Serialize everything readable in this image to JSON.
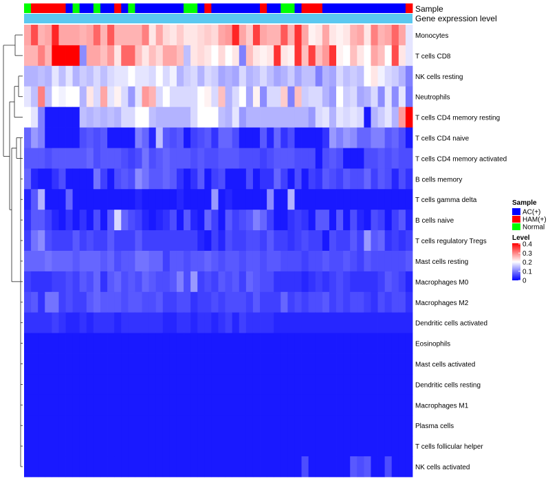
{
  "chart_data": {
    "type": "heatmap",
    "title": "",
    "annotation_tracks": [
      "Sample",
      "Gene expression level"
    ],
    "sample_groups": [
      "Normal",
      "HAM(+)",
      "HAM(+)",
      "HAM(+)",
      "HAM(+)",
      "HAM(+)",
      "AC(+)",
      "Normal",
      "AC(+)",
      "AC(+)",
      "Normal",
      "AC(+)",
      "AC(+)",
      "HAM(+)",
      "AC(+)",
      "Normal",
      "AC(+)",
      "AC(+)",
      "AC(+)",
      "AC(+)",
      "AC(+)",
      "AC(+)",
      "AC(+)",
      "Normal",
      "Normal",
      "AC(+)",
      "HAM(+)",
      "AC(+)",
      "AC(+)",
      "AC(+)",
      "AC(+)",
      "AC(+)",
      "AC(+)",
      "AC(+)",
      "HAM(+)",
      "AC(+)",
      "AC(+)",
      "Normal",
      "Normal",
      "AC(+)",
      "HAM(+)",
      "HAM(+)",
      "HAM(+)",
      "AC(+)",
      "AC(+)",
      "AC(+)",
      "AC(+)",
      "AC(+)",
      "AC(+)",
      "AC(+)",
      "AC(+)",
      "AC(+)",
      "AC(+)",
      "AC(+)",
      "AC(+)",
      "HAM(+)"
    ],
    "rows": [
      "Monocytes",
      "T cells CD8",
      "NK cells resting",
      "Neutrophils",
      "T cells CD4 memory resting",
      "T cells CD4 naive",
      "T cells CD4 memory activated",
      "B cells memory",
      "T cells gamma delta",
      "B cells naive",
      "T cells regulatory  Tregs",
      "Mast cells resting",
      "Macrophages M0",
      "Macrophages M2",
      "Dendritic cells activated",
      "Eosinophils",
      "Mast cells activated",
      "Dendritic cells resting",
      "Macrophages M1",
      "Plasma cells",
      "T cells follicular helper",
      "NK cells activated"
    ],
    "values": [
      [
        0.27,
        0.34,
        0.26,
        0.27,
        0.37,
        0.27,
        0.27,
        0.27,
        0.26,
        0.27,
        0.32,
        0.26,
        0.33,
        0.26,
        0.26,
        0.26,
        0.26,
        0.3,
        0.22,
        0.27,
        0.23,
        0.22,
        0.24,
        0.22,
        0.22,
        0.23,
        0.24,
        0.23,
        0.27,
        0.28,
        0.37,
        0.27,
        0.24,
        0.35,
        0.27,
        0.26,
        0.26,
        0.33,
        0.26,
        0.36,
        0.27,
        0.21,
        0.22,
        0.27,
        0.22,
        0.21,
        0.22,
        0.26,
        0.27,
        0.22,
        0.3,
        0.26,
        0.27,
        0.32,
        0.27,
        0.18
      ],
      [
        0.26,
        0.26,
        0.3,
        0.26,
        0.4,
        0.4,
        0.4,
        0.4,
        0.11,
        0.27,
        0.27,
        0.25,
        0.28,
        0.22,
        0.32,
        0.32,
        0.25,
        0.22,
        0.25,
        0.23,
        0.27,
        0.27,
        0.25,
        0.15,
        0.22,
        0.23,
        0.22,
        0.2,
        0.23,
        0.2,
        0.22,
        0.1,
        0.25,
        0.22,
        0.21,
        0.22,
        0.36,
        0.22,
        0.21,
        0.36,
        0.25,
        0.35,
        0.25,
        0.28,
        0.36,
        0.21,
        0.2,
        0.25,
        0.22,
        0.2,
        0.27,
        0.25,
        0.2,
        0.34,
        0.22,
        0.18
      ],
      [
        0.14,
        0.14,
        0.15,
        0.14,
        0.18,
        0.15,
        0.18,
        0.14,
        0.16,
        0.15,
        0.17,
        0.15,
        0.17,
        0.18,
        0.18,
        0.2,
        0.18,
        0.18,
        0.17,
        0.2,
        0.17,
        0.19,
        0.14,
        0.16,
        0.17,
        0.14,
        0.17,
        0.16,
        0.13,
        0.14,
        0.13,
        0.17,
        0.14,
        0.15,
        0.17,
        0.15,
        0.13,
        0.14,
        0.16,
        0.13,
        0.15,
        0.15,
        0.1,
        0.14,
        0.13,
        0.17,
        0.15,
        0.16,
        0.15,
        0.2,
        0.22,
        0.19,
        0.17,
        0.16,
        0.14,
        0.1
      ],
      [
        0.18,
        0.15,
        0.3,
        0.15,
        0.2,
        0.19,
        0.2,
        0.2,
        0.14,
        0.22,
        0.17,
        0.27,
        0.18,
        0.21,
        0.17,
        0.12,
        0.18,
        0.28,
        0.26,
        0.17,
        0.2,
        0.17,
        0.17,
        0.17,
        0.17,
        0.2,
        0.21,
        0.17,
        0.25,
        0.14,
        0.17,
        0.2,
        0.13,
        0.21,
        0.11,
        0.17,
        0.17,
        0.24,
        0.1,
        0.25,
        0.16,
        0.17,
        0.17,
        0.14,
        0.12,
        0.2,
        0.16,
        0.17,
        0.13,
        0.14,
        0.17,
        0.11,
        0.18,
        0.11,
        0.18,
        0.09
      ],
      [
        0.2,
        0.18,
        0.1,
        0.02,
        0.02,
        0.02,
        0.02,
        0.02,
        0.15,
        0.14,
        0.15,
        0.14,
        0.15,
        0.14,
        0.17,
        0.17,
        0.2,
        0.2,
        0.15,
        0.14,
        0.14,
        0.14,
        0.14,
        0.14,
        0.17,
        0.2,
        0.2,
        0.2,
        0.15,
        0.14,
        0.18,
        0.12,
        0.14,
        0.14,
        0.14,
        0.14,
        0.14,
        0.14,
        0.14,
        0.14,
        0.14,
        0.12,
        0.17,
        0.18,
        0.14,
        0.18,
        0.17,
        0.18,
        0.17,
        0.02,
        0.14,
        0.16,
        0.18,
        0.14,
        0.28,
        0.4
      ],
      [
        0.08,
        0.12,
        0.1,
        0.02,
        0.02,
        0.02,
        0.02,
        0.02,
        0.06,
        0.07,
        0.06,
        0.07,
        0.02,
        0.02,
        0.02,
        0.02,
        0.1,
        0.08,
        0.03,
        0.15,
        0.07,
        0.06,
        0.07,
        0.02,
        0.05,
        0.06,
        0.07,
        0.04,
        0.08,
        0.08,
        0.06,
        0.02,
        0.02,
        0.02,
        0.07,
        0.03,
        0.08,
        0.04,
        0.06,
        0.02,
        0.02,
        0.02,
        0.02,
        0.04,
        0.12,
        0.1,
        0.12,
        0.11,
        0.08,
        0.08,
        0.1,
        0.1,
        0.07,
        0.08,
        0.06,
        0.02
      ],
      [
        0.07,
        0.07,
        0.07,
        0.06,
        0.07,
        0.07,
        0.07,
        0.07,
        0.07,
        0.08,
        0.06,
        0.07,
        0.07,
        0.07,
        0.06,
        0.05,
        0.06,
        0.09,
        0.06,
        0.07,
        0.08,
        0.07,
        0.07,
        0.07,
        0.06,
        0.07,
        0.06,
        0.06,
        0.07,
        0.07,
        0.07,
        0.06,
        0.06,
        0.06,
        0.05,
        0.06,
        0.07,
        0.07,
        0.07,
        0.06,
        0.06,
        0.06,
        0.02,
        0.06,
        0.07,
        0.06,
        0.02,
        0.02,
        0.02,
        0.06,
        0.06,
        0.07,
        0.06,
        0.07,
        0.06,
        0.06
      ],
      [
        0.08,
        0.03,
        0.02,
        0.02,
        0.04,
        0.06,
        0.02,
        0.02,
        0.02,
        0.02,
        0.09,
        0.05,
        0.02,
        0.06,
        0.07,
        0.06,
        0.11,
        0.09,
        0.07,
        0.07,
        0.08,
        0.07,
        0.04,
        0.02,
        0.04,
        0.07,
        0.02,
        0.05,
        0.06,
        0.02,
        0.02,
        0.02,
        0.06,
        0.02,
        0.04,
        0.04,
        0.08,
        0.05,
        0.02,
        0.06,
        0.02,
        0.05,
        0.04,
        0.07,
        0.06,
        0.05,
        0.07,
        0.06,
        0.06,
        0.08,
        0.05,
        0.07,
        0.06,
        0.03,
        0.06,
        0.04
      ],
      [
        0.03,
        0.07,
        0.14,
        0.02,
        0.02,
        0.02,
        0.08,
        0.02,
        0.02,
        0.02,
        0.02,
        0.02,
        0.02,
        0.02,
        0.02,
        0.02,
        0.03,
        0.02,
        0.02,
        0.02,
        0.02,
        0.02,
        0.03,
        0.02,
        0.02,
        0.02,
        0.02,
        0.12,
        0.02,
        0.03,
        0.02,
        0.02,
        0.02,
        0.02,
        0.02,
        0.11,
        0.02,
        0.02,
        0.14,
        0.02,
        0.02,
        0.02,
        0.02,
        0.02,
        0.02,
        0.02,
        0.02,
        0.02,
        0.02,
        0.02,
        0.02,
        0.02,
        0.02,
        0.02,
        0.02,
        0.02
      ],
      [
        0.04,
        0.07,
        0.07,
        0.05,
        0.03,
        0.02,
        0.04,
        0.02,
        0.04,
        0.02,
        0.06,
        0.02,
        0.07,
        0.17,
        0.08,
        0.06,
        0.05,
        0.03,
        0.02,
        0.03,
        0.04,
        0.06,
        0.02,
        0.07,
        0.03,
        0.02,
        0.08,
        0.05,
        0.02,
        0.07,
        0.05,
        0.06,
        0.07,
        0.1,
        0.08,
        0.05,
        0.02,
        0.02,
        0.04,
        0.05,
        0.04,
        0.02,
        0.07,
        0.07,
        0.02,
        0.07,
        0.02,
        0.06,
        0.03,
        0.02,
        0.06,
        0.05,
        0.02,
        0.05,
        0.07,
        0.03
      ],
      [
        0.05,
        0.09,
        0.11,
        0.06,
        0.05,
        0.05,
        0.05,
        0.07,
        0.05,
        0.06,
        0.05,
        0.05,
        0.07,
        0.05,
        0.05,
        0.05,
        0.07,
        0.05,
        0.05,
        0.05,
        0.05,
        0.05,
        0.05,
        0.05,
        0.05,
        0.03,
        0.02,
        0.05,
        0.03,
        0.06,
        0.05,
        0.05,
        0.06,
        0.06,
        0.05,
        0.07,
        0.05,
        0.05,
        0.04,
        0.05,
        0.06,
        0.05,
        0.05,
        0.02,
        0.06,
        0.05,
        0.05,
        0.07,
        0.05,
        0.12,
        0.07,
        0.08,
        0.04,
        0.05,
        0.04,
        0.05
      ],
      [
        0.08,
        0.08,
        0.08,
        0.09,
        0.08,
        0.08,
        0.08,
        0.07,
        0.08,
        0.08,
        0.08,
        0.07,
        0.08,
        0.06,
        0.07,
        0.07,
        0.09,
        0.09,
        0.08,
        0.08,
        0.05,
        0.07,
        0.07,
        0.06,
        0.07,
        0.07,
        0.08,
        0.07,
        0.06,
        0.07,
        0.07,
        0.06,
        0.07,
        0.07,
        0.06,
        0.07,
        0.07,
        0.06,
        0.06,
        0.06,
        0.05,
        0.06,
        0.06,
        0.07,
        0.06,
        0.06,
        0.07,
        0.06,
        0.05,
        0.07,
        0.06,
        0.06,
        0.06,
        0.06,
        0.06,
        0.07
      ],
      [
        0.05,
        0.04,
        0.04,
        0.04,
        0.05,
        0.05,
        0.06,
        0.05,
        0.07,
        0.06,
        0.08,
        0.04,
        0.07,
        0.08,
        0.06,
        0.07,
        0.06,
        0.08,
        0.07,
        0.06,
        0.06,
        0.07,
        0.1,
        0.06,
        0.12,
        0.05,
        0.06,
        0.05,
        0.07,
        0.06,
        0.07,
        0.05,
        0.08,
        0.07,
        0.06,
        0.06,
        0.04,
        0.04,
        0.04,
        0.04,
        0.03,
        0.04,
        0.05,
        0.04,
        0.05,
        0.06,
        0.05,
        0.04,
        0.04,
        0.04,
        0.04,
        0.05,
        0.07,
        0.06,
        0.05,
        0.03
      ],
      [
        0.06,
        0.07,
        0.04,
        0.09,
        0.09,
        0.05,
        0.06,
        0.05,
        0.05,
        0.07,
        0.08,
        0.07,
        0.07,
        0.07,
        0.06,
        0.07,
        0.07,
        0.06,
        0.06,
        0.07,
        0.05,
        0.05,
        0.06,
        0.06,
        0.04,
        0.05,
        0.05,
        0.06,
        0.05,
        0.06,
        0.06,
        0.06,
        0.05,
        0.07,
        0.05,
        0.05,
        0.05,
        0.08,
        0.05,
        0.06,
        0.05,
        0.06,
        0.06,
        0.07,
        0.05,
        0.06,
        0.05,
        0.06,
        0.06,
        0.05,
        0.04,
        0.06,
        0.05,
        0.06,
        0.06,
        0.04
      ],
      [
        0.04,
        0.04,
        0.04,
        0.04,
        0.05,
        0.04,
        0.03,
        0.03,
        0.04,
        0.03,
        0.04,
        0.04,
        0.04,
        0.03,
        0.04,
        0.04,
        0.04,
        0.04,
        0.04,
        0.04,
        0.03,
        0.03,
        0.04,
        0.04,
        0.03,
        0.04,
        0.04,
        0.03,
        0.04,
        0.05,
        0.03,
        0.05,
        0.04,
        0.04,
        0.04,
        0.04,
        0.03,
        0.03,
        0.03,
        0.03,
        0.03,
        0.03,
        0.03,
        0.03,
        0.03,
        0.03,
        0.03,
        0.03,
        0.03,
        0.03,
        0.03,
        0.03,
        0.03,
        0.03,
        0.03,
        0.03
      ],
      [
        0.02,
        0.02,
        0.02,
        0.02,
        0.02,
        0.02,
        0.02,
        0.02,
        0.02,
        0.02,
        0.02,
        0.02,
        0.02,
        0.02,
        0.02,
        0.02,
        0.02,
        0.02,
        0.02,
        0.02,
        0.02,
        0.02,
        0.02,
        0.02,
        0.02,
        0.02,
        0.02,
        0.02,
        0.02,
        0.02,
        0.02,
        0.02,
        0.02,
        0.02,
        0.02,
        0.02,
        0.02,
        0.02,
        0.02,
        0.02,
        0.02,
        0.02,
        0.02,
        0.02,
        0.02,
        0.02,
        0.02,
        0.02,
        0.02,
        0.02,
        0.02,
        0.02,
        0.02,
        0.02,
        0.02,
        0.02
      ],
      [
        0.02,
        0.02,
        0.02,
        0.02,
        0.02,
        0.02,
        0.02,
        0.02,
        0.02,
        0.02,
        0.02,
        0.02,
        0.02,
        0.02,
        0.02,
        0.02,
        0.02,
        0.02,
        0.02,
        0.02,
        0.02,
        0.02,
        0.02,
        0.02,
        0.02,
        0.02,
        0.02,
        0.02,
        0.02,
        0.02,
        0.02,
        0.02,
        0.02,
        0.02,
        0.02,
        0.02,
        0.02,
        0.02,
        0.02,
        0.02,
        0.02,
        0.02,
        0.02,
        0.02,
        0.02,
        0.02,
        0.02,
        0.02,
        0.02,
        0.02,
        0.02,
        0.02,
        0.02,
        0.02,
        0.02,
        0.02
      ],
      [
        0.02,
        0.02,
        0.02,
        0.02,
        0.02,
        0.02,
        0.02,
        0.02,
        0.02,
        0.02,
        0.02,
        0.02,
        0.02,
        0.02,
        0.02,
        0.02,
        0.02,
        0.02,
        0.02,
        0.02,
        0.02,
        0.02,
        0.02,
        0.02,
        0.02,
        0.02,
        0.02,
        0.02,
        0.02,
        0.02,
        0.02,
        0.02,
        0.02,
        0.02,
        0.02,
        0.02,
        0.02,
        0.02,
        0.02,
        0.02,
        0.02,
        0.02,
        0.02,
        0.02,
        0.02,
        0.02,
        0.02,
        0.02,
        0.02,
        0.02,
        0.02,
        0.02,
        0.02,
        0.02,
        0.02,
        0.02
      ],
      [
        0.02,
        0.02,
        0.02,
        0.02,
        0.02,
        0.02,
        0.02,
        0.02,
        0.02,
        0.02,
        0.02,
        0.02,
        0.02,
        0.02,
        0.02,
        0.02,
        0.02,
        0.02,
        0.02,
        0.02,
        0.02,
        0.02,
        0.02,
        0.02,
        0.02,
        0.02,
        0.02,
        0.02,
        0.02,
        0.02,
        0.02,
        0.02,
        0.02,
        0.02,
        0.02,
        0.02,
        0.02,
        0.02,
        0.02,
        0.02,
        0.02,
        0.02,
        0.02,
        0.02,
        0.02,
        0.02,
        0.02,
        0.02,
        0.02,
        0.02,
        0.02,
        0.02,
        0.02,
        0.02,
        0.02,
        0.02
      ],
      [
        0.02,
        0.02,
        0.02,
        0.02,
        0.02,
        0.02,
        0.02,
        0.02,
        0.02,
        0.02,
        0.02,
        0.02,
        0.02,
        0.02,
        0.02,
        0.02,
        0.02,
        0.02,
        0.02,
        0.02,
        0.02,
        0.02,
        0.02,
        0.02,
        0.02,
        0.02,
        0.02,
        0.02,
        0.02,
        0.02,
        0.02,
        0.02,
        0.02,
        0.02,
        0.02,
        0.02,
        0.02,
        0.02,
        0.02,
        0.02,
        0.02,
        0.02,
        0.02,
        0.02,
        0.02,
        0.02,
        0.02,
        0.02,
        0.02,
        0.02,
        0.02,
        0.02,
        0.02,
        0.02,
        0.02,
        0.02
      ],
      [
        0.02,
        0.02,
        0.02,
        0.02,
        0.02,
        0.02,
        0.02,
        0.02,
        0.02,
        0.02,
        0.02,
        0.02,
        0.02,
        0.02,
        0.02,
        0.02,
        0.02,
        0.02,
        0.02,
        0.02,
        0.02,
        0.02,
        0.02,
        0.02,
        0.02,
        0.02,
        0.02,
        0.02,
        0.02,
        0.02,
        0.02,
        0.02,
        0.02,
        0.02,
        0.02,
        0.02,
        0.02,
        0.02,
        0.02,
        0.02,
        0.02,
        0.02,
        0.02,
        0.02,
        0.02,
        0.02,
        0.02,
        0.02,
        0.02,
        0.02,
        0.02,
        0.02,
        0.02,
        0.02,
        0.02,
        0.02
      ],
      [
        0.02,
        0.02,
        0.02,
        0.02,
        0.02,
        0.02,
        0.02,
        0.02,
        0.02,
        0.02,
        0.02,
        0.02,
        0.02,
        0.02,
        0.02,
        0.02,
        0.02,
        0.02,
        0.02,
        0.02,
        0.02,
        0.02,
        0.02,
        0.02,
        0.02,
        0.02,
        0.02,
        0.02,
        0.02,
        0.02,
        0.02,
        0.02,
        0.02,
        0.02,
        0.02,
        0.02,
        0.02,
        0.02,
        0.02,
        0.02,
        0.06,
        0.02,
        0.02,
        0.02,
        0.02,
        0.02,
        0.02,
        0.07,
        0.06,
        0.07,
        0.02,
        0.02,
        0.06,
        0.02,
        0.02,
        0.02
      ]
    ],
    "legend_sample": {
      "title": "Sample",
      "items": [
        {
          "label": "AC(+)",
          "color": "#0000ff"
        },
        {
          "label": "HAM(+)",
          "color": "#ff0000"
        },
        {
          "label": "Normal",
          "color": "#00ff00"
        }
      ]
    },
    "legend_level": {
      "title": "Level",
      "ticks": [
        "0.4",
        "0.3",
        "0.2",
        "0.1",
        "0"
      ],
      "range": [
        0,
        0.4
      ],
      "colors": {
        "low": "#0000ff",
        "mid": "#ffffff",
        "high": "#ff0000"
      }
    },
    "expression_bar_color": "#5bc8f0"
  }
}
